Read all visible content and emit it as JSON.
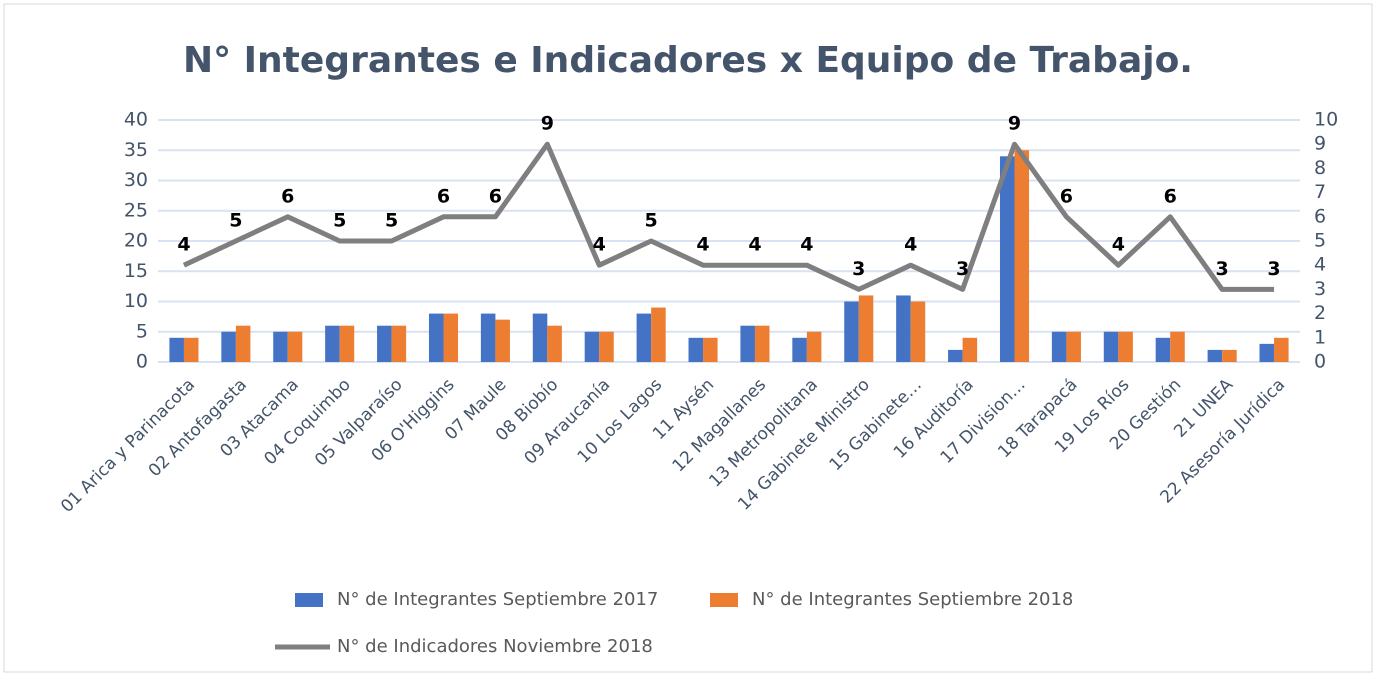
{
  "chart_data": {
    "type": "bar",
    "title": "N° Integrantes e Indicadores x Equipo de Trabajo.",
    "categories": [
      "01 Arica y Parinacota",
      "02 Antofagasta",
      "03 Atacama",
      "04 Coquimbo",
      "05 Valparaíso",
      "06 O'Higgins",
      "07 Maule",
      "08 Biobío",
      "09 Araucanía",
      "10 Los Lagos",
      "11 Aysén",
      "12 Magallanes",
      "13 Metropolitana",
      "14 Gabinete Ministro",
      "15 Gabinete…",
      "16 Auditoría",
      "17 Division…",
      "18 Tarapacá",
      "19 Los Ríos",
      "20 Gestión",
      "21 UNEA",
      "22 Asesoría Jurídica"
    ],
    "series": [
      {
        "name": "N° de Integrantes Septiembre 2017",
        "type": "bar",
        "color": "#4472c4",
        "values": [
          4,
          5,
          5,
          6,
          6,
          8,
          8,
          8,
          5,
          8,
          4,
          6,
          4,
          10,
          11,
          2,
          34,
          5,
          5,
          4,
          2,
          3
        ]
      },
      {
        "name": "N° de Integrantes Septiembre 2018",
        "type": "bar",
        "color": "#ed7d31",
        "values": [
          4,
          6,
          5,
          6,
          6,
          8,
          7,
          6,
          5,
          9,
          4,
          6,
          5,
          11,
          10,
          4,
          35,
          5,
          5,
          5,
          2,
          4
        ]
      },
      {
        "name": "N° de Indicadores Noviembre 2018",
        "type": "line",
        "axis": "y2",
        "color": "#7f7f7f",
        "values": [
          4,
          5,
          6,
          5,
          5,
          6,
          6,
          9,
          4,
          5,
          4,
          4,
          4,
          3,
          4,
          3,
          9,
          6,
          4,
          6,
          3,
          3
        ]
      }
    ],
    "ylim": [
      0,
      40
    ],
    "yticks": [
      0,
      5,
      10,
      15,
      20,
      25,
      30,
      35,
      40
    ],
    "y2lim": [
      0,
      10
    ],
    "y2ticks": [
      0,
      1,
      2,
      3,
      4,
      5,
      6,
      7,
      8,
      9,
      10
    ],
    "grid": true,
    "legend": "bottom"
  }
}
